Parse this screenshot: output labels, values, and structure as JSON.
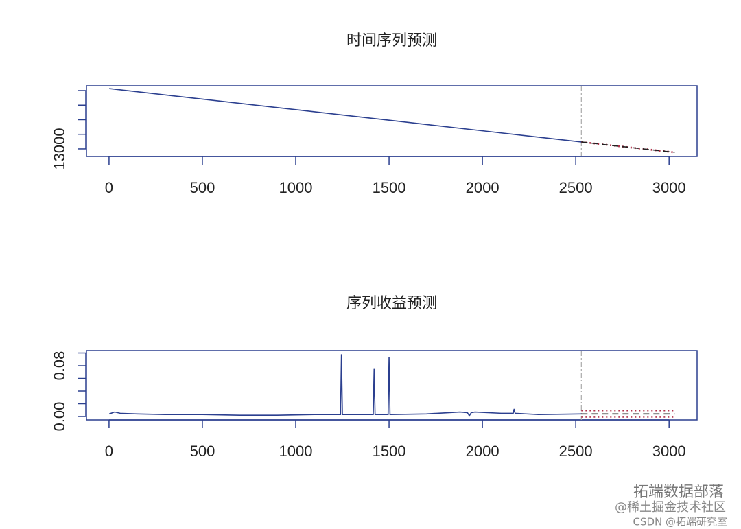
{
  "chart_data": [
    {
      "type": "line",
      "title": "时间序列预测",
      "xlim": [
        -121,
        3150
      ],
      "ylim": [
        12480,
        17330
      ],
      "xticks": [
        0,
        500,
        1000,
        1500,
        2000,
        2500,
        3000
      ],
      "yticks": [
        13000,
        {
          "value": 14000,
          "label": null
        },
        {
          "value": 15000,
          "label": null
        },
        {
          "value": 16000,
          "label": null
        },
        {
          "value": 17000,
          "label": null
        }
      ],
      "vline": 2530,
      "series": [
        {
          "color": "#2b3f8f",
          "linestyle": "solid",
          "x": [
            1,
            500,
            1000,
            1500,
            2000,
            2530
          ],
          "values": [
            17140,
            16416,
            15690,
            14965,
            14239,
            13470
          ]
        },
        {
          "color": "#b0304a",
          "linestyle": "dotted",
          "x": [
            2530,
            3030
          ],
          "values": [
            13490,
            12790
          ]
        },
        {
          "color": "#b0304a",
          "linestyle": "dotted",
          "x": [
            2530,
            3030
          ],
          "values": [
            13450,
            12730
          ]
        },
        {
          "color": "#222222",
          "linestyle": "dashed",
          "x": [
            2530,
            3030
          ],
          "values": [
            13470,
            12760
          ]
        }
      ]
    },
    {
      "type": "line",
      "title": "序列收益预测",
      "xlim": [
        -121,
        3150
      ],
      "ylim": [
        -0.0054,
        0.1038
      ],
      "xticks": [
        0,
        500,
        1000,
        1500,
        2000,
        2500,
        3000
      ],
      "yticks": [
        {
          "value": 0,
          "label": "0.00"
        },
        {
          "value": 0.02,
          "label": null
        },
        {
          "value": 0.04,
          "label": null
        },
        {
          "value": 0.06,
          "label": null
        },
        {
          "value": 0.08,
          "label": "0.08"
        },
        {
          "value": 0.1,
          "label": null
        }
      ],
      "vline": 2530,
      "series": [
        {
          "color": "#2b3f8f",
          "linestyle": "solid",
          "x": [
            1,
            30,
            60,
            150,
            300,
            500,
            700,
            900,
            1100,
            1240,
            1245,
            1250,
            1415,
            1420,
            1425,
            1495,
            1500,
            1505,
            1700,
            1880,
            1920,
            1930,
            1940,
            1960,
            2100,
            2165,
            2170,
            2175,
            2300,
            2530
          ],
          "values": [
            0.004,
            0.007,
            0.005,
            0.004,
            0.003,
            0.003,
            0.002,
            0.002,
            0.003,
            0.003,
            0.098,
            0.003,
            0.003,
            0.075,
            0.003,
            0.003,
            0.093,
            0.003,
            0.004,
            0.007,
            0.006,
            0.001,
            0.006,
            0.007,
            0.005,
            0.005,
            0.012,
            0.005,
            0.003,
            0.004
          ]
        },
        {
          "color": "#b0304a",
          "linestyle": "dotted",
          "x": [
            2530,
            3030
          ],
          "values": [
            0.009,
            0.009
          ]
        },
        {
          "color": "#b0304a",
          "linestyle": "dotted",
          "x": [
            2530,
            3030
          ],
          "values": [
            -0.001,
            -0.001
          ]
        },
        {
          "color": "#222222",
          "linestyle": "dashed",
          "x": [
            2530,
            3030
          ],
          "values": [
            0.004,
            0.004
          ]
        }
      ]
    }
  ],
  "watermarks": [
    "拓端数据部落",
    "@稀土掘金技术社区",
    "CSDN @拓端研究室"
  ]
}
